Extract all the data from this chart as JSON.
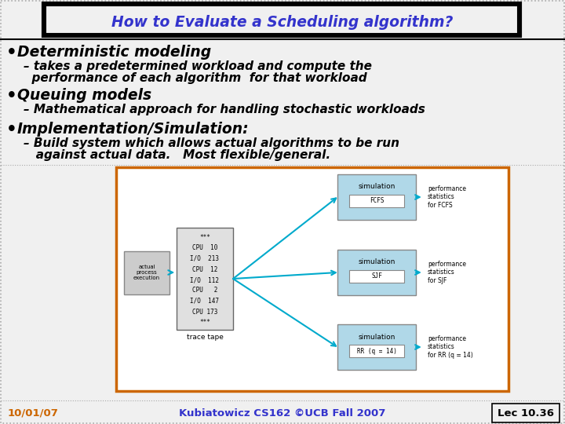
{
  "title": "How to Evaluate a Scheduling algorithm?",
  "title_color": "#3333cc",
  "title_fontsize": 13.5,
  "slide_bg": "#f0f0f0",
  "bullet1": "Deterministic modeling",
  "sub1a": "– takes a predetermined workload and compute the",
  "sub1b": "  performance of each algorithm  for that workload",
  "bullet2": "Queuing models",
  "sub2": "– Mathematical approach for handling stochastic workloads",
  "bullet3": "Implementation/Simulation:",
  "sub3a": "– Build system which allows actual algorithms to be run",
  "sub3b": "   against actual data.   Most flexible/general.",
  "footer_left": "10/01/07",
  "footer_center": "Kubiatowicz CS162 ©UCB Fall 2007",
  "footer_right": "Lec 10.36",
  "footer_color_left": "#cc6600",
  "footer_color_center": "#3333cc",
  "footer_color_right": "#000000",
  "outer_border_color": "#888888",
  "diagram_border_color": "#cc6600",
  "diagram_box_fill": "#b0d8e8",
  "diagram_bg": "#ffffff",
  "arrow_color": "#00aacc",
  "bullet_fontsize": 13.5,
  "sub_fontsize": 11.0,
  "footer_fontsize": 9.5
}
